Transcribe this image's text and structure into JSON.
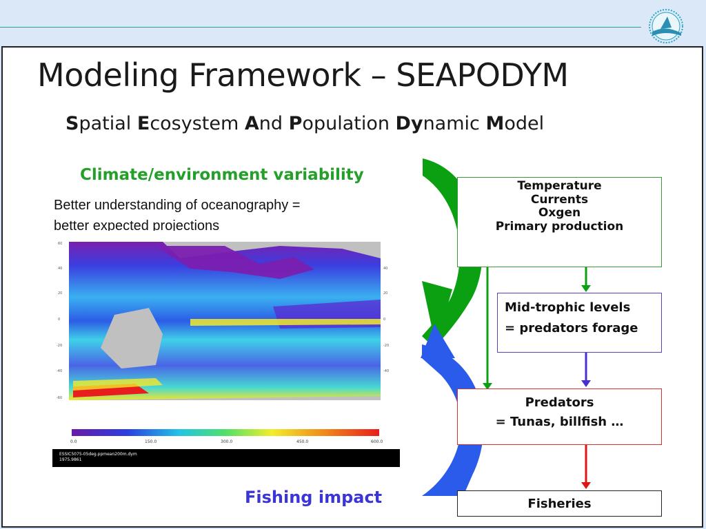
{
  "slide": {
    "title": "Modeling Framework – SEAPODYM",
    "subtitle": {
      "parts": [
        {
          "b": "S",
          "t": "patial "
        },
        {
          "b": "E",
          "t": "cosystem "
        },
        {
          "b": "A",
          "t": "nd "
        },
        {
          "b": "P",
          "t": "opulation "
        },
        {
          "b": "Dy",
          "t": "namic "
        },
        {
          "b": "M",
          "t": "odel"
        }
      ]
    },
    "climate_heading": "Climate/environment variability",
    "note_line1": "Better understanding of oceanography =",
    "note_line2": "better expected projections",
    "fishing_heading": "Fishing impact"
  },
  "map": {
    "colorbar_ticks": [
      "0.0",
      "150.0",
      "300.0",
      "450.0",
      "600.0"
    ],
    "caption_line1": "ESSIC5075-05deg.ppmean200m.dym",
    "caption_line2": "1975.9861"
  },
  "boxes": {
    "environment": {
      "lines": [
        "Temperature",
        "Currents",
        "Oxgen",
        "Primary production"
      ]
    },
    "mid_trophic": {
      "line1": "Mid-trophic levels",
      "line2": "= predators forage"
    },
    "predators": {
      "line1": "Predators",
      "line2": "= Tunas, billfish …"
    },
    "fisheries": {
      "label": "Fisheries"
    }
  },
  "colors": {
    "green": "#0aa012",
    "blue": "#2a5bea",
    "purple": "#4a2fd0",
    "red": "#e01515"
  }
}
